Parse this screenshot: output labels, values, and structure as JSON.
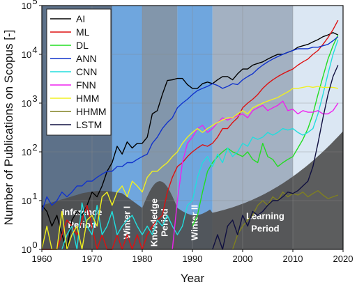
{
  "chart_data": {
    "type": "line",
    "xlabel": "Year",
    "ylabel": "Number of Publications on Scopus [-]",
    "xlim": [
      1960,
      2020
    ],
    "ylim_log10": [
      0,
      5
    ],
    "log_y": true,
    "grid": true,
    "legend_placement": "top-left",
    "x_ticks": [
      "1960",
      "1970",
      "1980",
      "1990",
      "2000",
      "2010",
      "2020"
    ],
    "y_tick_bases": [
      "10",
      "10",
      "10",
      "10",
      "10",
      "10"
    ],
    "y_tick_exps": [
      "0",
      "1",
      "2",
      "3",
      "4",
      "5"
    ],
    "periods": [
      {
        "label_lines": [
          "Inference",
          "Period"
        ],
        "range": [
          1960,
          1980
        ],
        "color": "#5d7189",
        "vertical": false
      },
      {
        "label_lines": [
          "Winter I"
        ],
        "range": [
          1974,
          1980
        ],
        "color": "#6fa6de",
        "vertical": true
      },
      {
        "label_lines": [
          "Knowledge",
          "Period"
        ],
        "range": [
          1980,
          1987
        ],
        "color": "#8296ab",
        "vertical": true
      },
      {
        "label_lines": [
          "Winter II"
        ],
        "range": [
          1987,
          1994
        ],
        "color": "#6fa6de",
        "vertical": true
      },
      {
        "label_lines": [
          "Learning",
          "Period"
        ],
        "range": [
          1994,
          2010
        ],
        "color": "#a3b1c2",
        "vertical": false
      },
      {
        "label_lines": [],
        "range": [
          2010,
          2020
        ],
        "color": "#dbe7f3",
        "vertical": false
      }
    ],
    "series": [
      {
        "name": "AI",
        "color": "#000000",
        "x": [
          1960,
          1961,
          1962,
          1963,
          1964,
          1965,
          1966,
          1967,
          1968,
          1969,
          1970,
          1971,
          1972,
          1973,
          1974,
          1975,
          1976,
          1977,
          1978,
          1979,
          1980,
          1981,
          1982,
          1983,
          1984,
          1985,
          1986,
          1987,
          1988,
          1989,
          1990,
          1991,
          1992,
          1993,
          1994,
          1995,
          1996,
          1997,
          1998,
          1999,
          2000,
          2001,
          2002,
          2003,
          2004,
          2005,
          2006,
          2007,
          2008,
          2009,
          2010,
          2011,
          2012,
          2013,
          2014,
          2015,
          2016,
          2017,
          2018,
          2019
        ],
        "y": [
          8,
          6,
          3,
          5,
          2,
          1,
          4,
          6,
          5,
          8,
          15,
          12,
          20,
          40,
          60,
          130,
          90,
          160,
          120,
          150,
          150,
          200,
          600,
          700,
          1500,
          2900,
          3000,
          3200,
          3200,
          2400,
          2000,
          2000,
          2500,
          2700,
          2500,
          3000,
          3500,
          3500,
          3000,
          4000,
          5000,
          5000,
          6000,
          6500,
          7000,
          8000,
          9000,
          10000,
          10000,
          11000,
          12000,
          14000,
          15000,
          16000,
          18000,
          20000,
          23000,
          25000,
          28000,
          25000
        ]
      },
      {
        "name": "ML",
        "color": "#dd1111",
        "x": [
          1960,
          1961,
          1962,
          1963,
          1964,
          1965,
          1966,
          1967,
          1968,
          1969,
          1970,
          1971,
          1972,
          1973,
          1974,
          1975,
          1976,
          1977,
          1978,
          1979,
          1980,
          1981,
          1982,
          1983,
          1984,
          1985,
          1986,
          1987,
          1988,
          1989,
          1990,
          1991,
          1992,
          1993,
          1994,
          1995,
          1996,
          1997,
          1998,
          1999,
          2000,
          2001,
          2002,
          2003,
          2004,
          2005,
          2006,
          2007,
          2008,
          2009,
          2010,
          2011,
          2012,
          2013,
          2014,
          2015,
          2016,
          2017,
          2018,
          2019
        ],
        "y": [
          1,
          1,
          1,
          1,
          2,
          4,
          3,
          2,
          4,
          8,
          3,
          1,
          2,
          1,
          1,
          2,
          1,
          2,
          1,
          2,
          1,
          2,
          3,
          4,
          5,
          15,
          30,
          50,
          60,
          80,
          100,
          120,
          140,
          130,
          150,
          200,
          300,
          300,
          400,
          500,
          800,
          1000,
          1200,
          1500,
          2000,
          2500,
          3000,
          3500,
          4000,
          4500,
          5000,
          6000,
          7000,
          8000,
          10000,
          12000,
          16000,
          22000,
          32000,
          50000
        ]
      },
      {
        "name": "DL",
        "color": "#22dd22",
        "x": [
          1990,
          1991,
          1992,
          1993,
          1994,
          1995,
          1996,
          1997,
          1998,
          1999,
          2000,
          2001,
          2002,
          2003,
          2004,
          2005,
          2006,
          2007,
          2008,
          2009,
          2010,
          2011,
          2012,
          2013,
          2014,
          2015,
          2016,
          2017,
          2018,
          2019
        ],
        "y": [
          3,
          5,
          15,
          40,
          60,
          80,
          100,
          120,
          100,
          90,
          80,
          100,
          70,
          60,
          150,
          80,
          70,
          50,
          60,
          70,
          80,
          120,
          180,
          300,
          600,
          1500,
          3500,
          8000,
          15000,
          25000
        ]
      },
      {
        "name": "ANN",
        "color": "#1133cc",
        "x": [
          1960,
          1961,
          1962,
          1963,
          1964,
          1965,
          1966,
          1967,
          1968,
          1969,
          1970,
          1971,
          1972,
          1973,
          1974,
          1975,
          1976,
          1977,
          1978,
          1979,
          1980,
          1981,
          1982,
          1983,
          1984,
          1985,
          1986,
          1987,
          1988,
          1989,
          1990,
          1991,
          1992,
          1993,
          1994,
          1995,
          1996,
          1997,
          1998,
          1999,
          2000,
          2001,
          2002,
          2003,
          2004,
          2005,
          2006,
          2007,
          2008,
          2009,
          2010,
          2011,
          2012,
          2013,
          2014,
          2015,
          2016,
          2017,
          2018,
          2019
        ],
        "y": [
          6,
          12,
          8,
          10,
          15,
          12,
          15,
          20,
          20,
          25,
          25,
          30,
          35,
          40,
          40,
          50,
          50,
          60,
          60,
          70,
          80,
          90,
          150,
          200,
          300,
          400,
          500,
          800,
          1000,
          1200,
          1500,
          1800,
          2000,
          2200,
          2500,
          2300,
          2000,
          2200,
          2500,
          2400,
          3000,
          3500,
          4000,
          5000,
          6000,
          7000,
          8000,
          9000,
          10000,
          11000,
          12000,
          13000,
          13000,
          13000,
          14000,
          14000,
          15000,
          16000,
          19000,
          23000
        ]
      },
      {
        "name": "CNN",
        "color": "#22dddd",
        "x": [
          1964,
          1965,
          1966,
          1967,
          1968,
          1969,
          1970,
          1971,
          1972,
          1973,
          1974,
          1975,
          1976,
          1977,
          1978,
          1979,
          1980,
          1981,
          1982,
          1983,
          1984,
          1985,
          1986,
          1987,
          1988,
          1989,
          1990,
          1991,
          1992,
          1993,
          1994,
          1995,
          1996,
          1997,
          1998,
          1999,
          2000,
          2001,
          2002,
          2003,
          2004,
          2005,
          2006,
          2007,
          2008,
          2009,
          2010,
          2011,
          2012,
          2013,
          2014,
          2015,
          2016,
          2017,
          2018,
          2019
        ],
        "y": [
          1,
          2,
          3,
          1,
          9,
          3,
          2,
          8,
          2,
          3,
          6,
          2,
          3,
          4,
          5,
          3,
          2,
          3,
          2,
          4,
          3,
          5,
          3,
          2,
          3,
          8,
          10,
          30,
          60,
          80,
          50,
          90,
          60,
          120,
          80,
          100,
          150,
          130,
          200,
          180,
          200,
          250,
          220,
          250,
          300,
          280,
          300,
          250,
          220,
          250,
          300,
          600,
          1500,
          4000,
          10000,
          20000
        ]
      },
      {
        "name": "FNN",
        "color": "#ee22ee",
        "x": [
          1986,
          1987,
          1988,
          1989,
          1990,
          1991,
          1992,
          1993,
          1994,
          1995,
          1996,
          1997,
          1998,
          1999,
          2000,
          2001,
          2002,
          2003,
          2004,
          2005,
          2006,
          2007,
          2008,
          2009,
          2010,
          2011,
          2012,
          2013,
          2014,
          2015,
          2016,
          2017,
          2018,
          2019
        ],
        "y": [
          1,
          10,
          60,
          150,
          200,
          300,
          350,
          250,
          300,
          400,
          500,
          450,
          500,
          550,
          600,
          500,
          700,
          800,
          900,
          700,
          800,
          900,
          1100,
          700,
          750,
          600,
          700,
          650,
          650,
          700,
          600,
          600,
          700,
          1000
        ]
      },
      {
        "name": "HMM",
        "color": "#f0f020",
        "x": [
          1960,
          1961,
          1962,
          1963,
          1964,
          1965,
          1966,
          1967,
          1968,
          1969,
          1970,
          1971,
          1972,
          1973,
          1974,
          1975,
          1976,
          1977,
          1978,
          1979,
          1980,
          1981,
          1982,
          1983,
          1984,
          1985,
          1986,
          1987,
          1988,
          1989,
          1990,
          1991,
          1992,
          1993,
          1994,
          1995,
          1996,
          1997,
          1998,
          1999,
          2000,
          2001,
          2002,
          2003,
          2004,
          2005,
          2006,
          2007,
          2008,
          2009,
          2010,
          2011,
          2012,
          2013,
          2014,
          2015,
          2016,
          2017,
          2018,
          2019
        ],
        "y": [
          1,
          3,
          1,
          1,
          6,
          1,
          2,
          3,
          1,
          4,
          5,
          3,
          12,
          15,
          8,
          15,
          20,
          12,
          25,
          20,
          15,
          30,
          40,
          40,
          50,
          60,
          80,
          100,
          150,
          200,
          250,
          300,
          250,
          300,
          350,
          400,
          450,
          500,
          500,
          600,
          700,
          600,
          800,
          900,
          1000,
          1100,
          1200,
          1300,
          1500,
          1700,
          2000,
          2000,
          2100,
          2200,
          2100,
          2200,
          2100,
          2100,
          2100,
          2000
        ]
      },
      {
        "name": "HHMM",
        "color": "#808020",
        "x": [
          1998,
          1999,
          2000,
          2001,
          2002,
          2003,
          2004,
          2005,
          2006,
          2007,
          2008,
          2009,
          2010,
          2011,
          2012,
          2013,
          2014,
          2015,
          2016,
          2017,
          2018,
          2019
        ],
        "y": [
          1,
          2,
          3,
          4,
          5,
          8,
          10,
          8,
          12,
          10,
          15,
          12,
          14,
          13,
          15,
          12,
          14,
          16,
          13,
          11,
          12,
          13
        ]
      },
      {
        "name": "LSTM",
        "color": "#101040",
        "x": [
          1994,
          1995,
          1996,
          1997,
          1998,
          1999,
          2000,
          2001,
          2002,
          2003,
          2004,
          2005,
          2006,
          2007,
          2008,
          2009,
          2010,
          2011,
          2012,
          2013,
          2014,
          2015,
          2016,
          2017,
          2018,
          2019
        ],
        "y": [
          1,
          2,
          1,
          3,
          4,
          2,
          5,
          3,
          6,
          5,
          6,
          8,
          10,
          10,
          12,
          15,
          14,
          16,
          20,
          25,
          50,
          150,
          500,
          1500,
          3500,
          6000
        ]
      }
    ]
  }
}
